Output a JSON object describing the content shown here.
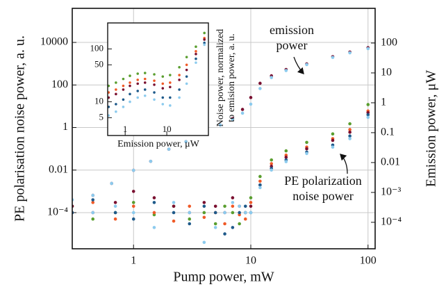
{
  "chart_data": [
    {
      "type": "scatter",
      "xlabel": "Pump power, mW",
      "ylabel": "PE polarisation noise power, a. u.",
      "y2label": "Emission power, μW",
      "xlog": true,
      "ylog": true,
      "y2log": true,
      "grid": true,
      "xlim": [
        0.3,
        115
      ],
      "ylim": [
        2e-06,
        400000
      ],
      "y2lim": [
        1.3e-05,
        1450
      ],
      "xticks": [
        1,
        10,
        100
      ],
      "yticks": [
        10000,
        100,
        1,
        0.01,
        {
          "value": 0.0001,
          "label": "10⁻⁴"
        }
      ],
      "y2ticks": [
        100,
        10,
        1,
        0.1,
        0.01,
        {
          "value": 0.001,
          "label": "10⁻³"
        },
        {
          "value": 0.0001,
          "label": "10⁻⁴"
        }
      ],
      "annotations": [
        {
          "lines": [
            "emission",
            "power"
          ]
        },
        {
          "lines": [
            "PE polarization",
            "noise power"
          ]
        }
      ],
      "series": [
        {
          "color": "#7a1030",
          "axis": "y2",
          "x": [
            0.45,
            0.65,
            1,
            1.4,
            2,
            2.8,
            4,
            5.5,
            7,
            8.5,
            10,
            12,
            15,
            20,
            30,
            50,
            70,
            100
          ],
          "values": [
            0.0008,
            0.002,
            0.0055,
            0.011,
            0.028,
            0.05,
            0.1,
            0.18,
            0.3,
            0.6,
            1.5,
            4.5,
            8,
            13,
            20,
            35,
            50,
            70
          ]
        },
        {
          "color": "#8ccbee",
          "axis": "y2",
          "x": [
            0.45,
            0.65,
            1,
            1.4,
            2,
            2.8,
            4,
            5.5,
            7,
            8.5,
            10,
            12,
            15,
            20,
            30,
            50,
            70,
            100
          ],
          "values": [
            0.0008,
            0.002,
            0.0055,
            0.011,
            0.028,
            0.05,
            0.1,
            0.18,
            0.28,
            0.45,
            0.9,
            3,
            7,
            12,
            19,
            33,
            47,
            65
          ]
        },
        {
          "color": "#5a9e2f",
          "x": [
            0.3,
            0.45,
            0.7,
            1,
            1.5,
            2.2,
            3,
            4,
            5,
            6,
            7,
            8,
            9,
            10,
            12,
            15,
            20,
            30,
            50,
            70,
            100
          ],
          "values": [
            0.0002,
            5e-05,
            0.0001,
            0.0003,
            8e-05,
            0.0002,
            5e-05,
            0.0001,
            3e-05,
            0.0002,
            0.0001,
            3e-05,
            0.0001,
            0.0005,
            0.005,
            0.03,
            0.08,
            0.2,
            0.5,
            1.5,
            12
          ]
        },
        {
          "color": "#f05a28",
          "x": [
            0.3,
            0.45,
            0.7,
            1,
            1.5,
            2.2,
            3,
            4,
            5,
            6,
            7,
            8,
            9,
            10,
            12,
            15,
            20,
            30,
            50,
            70,
            100
          ],
          "values": [
            0.0001,
            0.0003,
            5e-05,
            0.0002,
            0.0001,
            4e-05,
            0.0002,
            6e-05,
            0.0001,
            3e-05,
            0.0002,
            8e-05,
            5e-05,
            0.0003,
            0.003,
            0.02,
            0.05,
            0.12,
            0.3,
            0.8,
            6
          ]
        },
        {
          "color": "#7a1030",
          "x": [
            0.3,
            0.45,
            0.7,
            1,
            1.5,
            2.2,
            3,
            4,
            5,
            6,
            7,
            8,
            9,
            10,
            12,
            15,
            20,
            30,
            50,
            70,
            100
          ],
          "values": [
            0.0002,
            0.0001,
            0.0003,
            0.001,
            0.0005,
            0.0002,
            0.0001,
            0.0003,
            0.0002,
            0.0001,
            0.0005,
            0.0002,
            0.0001,
            0.0002,
            0.002,
            0.015,
            0.04,
            0.1,
            0.25,
            0.6,
            5
          ]
        },
        {
          "color": "#1f5a8a",
          "x": [
            0.3,
            0.45,
            0.7,
            1,
            1.5,
            2.2,
            3,
            4,
            5,
            6,
            7,
            8,
            9,
            10,
            12,
            15,
            20,
            30,
            50,
            70,
            100
          ],
          "values": [
            0.0001,
            0.0004,
            0.0001,
            5e-05,
            0.0003,
            0.0001,
            3e-05,
            0.0002,
            0.0001,
            1e-05,
            2e-05,
            0.0001,
            0.0002,
            0.0001,
            0.002,
            0.012,
            0.03,
            0.07,
            0.15,
            0.4,
            4
          ]
        },
        {
          "color": "#8ccbee",
          "x": [
            0.3,
            0.45,
            0.7,
            1,
            1.5,
            2.2,
            3,
            4,
            5,
            6,
            7,
            8,
            9,
            10,
            12,
            15,
            20,
            30,
            50,
            70,
            100
          ],
          "values": [
            0.0004,
            0.0001,
            0.0002,
            0.0001,
            2e-05,
            0.0003,
            0.0001,
            4e-06,
            2e-05,
            0.0001,
            0.0003,
            0.0002,
            0.0001,
            0.0001,
            0.0015,
            0.01,
            0.025,
            0.06,
            0.12,
            0.3,
            3
          ]
        }
      ]
    },
    {
      "type": "scatter",
      "xlabel": "Emission power, μW",
      "ylabel": [
        "Noise power, normalized",
        "to emision power, a. u."
      ],
      "xlog": true,
      "ylog": true,
      "grid": false,
      "xlim": [
        0.38,
        100
      ],
      "ylim": [
        2.3,
        310
      ],
      "xticks": [
        1,
        10
      ],
      "yticks": [
        5,
        10,
        50,
        100
      ],
      "series": [
        {
          "color": "#5a9e2f",
          "x": [
            0.4,
            0.6,
            0.9,
            1.3,
            2,
            3,
            5,
            8,
            12,
            20,
            30,
            50,
            80
          ],
          "values": [
            20,
            23,
            27,
            31,
            34,
            35,
            33,
            30,
            32,
            45,
            70,
            110,
            200
          ]
        },
        {
          "color": "#f05a28",
          "x": [
            0.4,
            0.6,
            0.9,
            1.3,
            2,
            3,
            5,
            8,
            12,
            20,
            30,
            50,
            80
          ],
          "values": [
            15,
            17,
            20,
            23,
            26,
            27,
            25,
            22,
            23,
            32,
            50,
            90,
            160
          ]
        },
        {
          "color": "#7a1030",
          "x": [
            0.4,
            0.6,
            0.9,
            1.3,
            2,
            3,
            5,
            8,
            12,
            20,
            30,
            50,
            80
          ],
          "values": [
            12,
            14,
            17,
            20,
            22,
            23,
            21,
            18,
            19,
            26,
            40,
            80,
            150
          ]
        },
        {
          "color": "#1f5a8a",
          "x": [
            0.4,
            0.6,
            0.9,
            1.3,
            2,
            3,
            5,
            8,
            12,
            20,
            30,
            50,
            80
          ],
          "values": [
            8,
            9,
            11,
            14,
            16,
            17,
            15,
            12,
            12,
            17,
            30,
            65,
            130
          ]
        },
        {
          "color": "#8ccbee",
          "x": [
            0.4,
            0.6,
            0.9,
            1.3,
            2,
            3,
            5,
            8,
            12,
            20,
            30,
            50,
            80
          ],
          "values": [
            5.5,
            6.5,
            8,
            10,
            12,
            13,
            11,
            9,
            8.5,
            12,
            22,
            55,
            120
          ]
        }
      ]
    }
  ]
}
